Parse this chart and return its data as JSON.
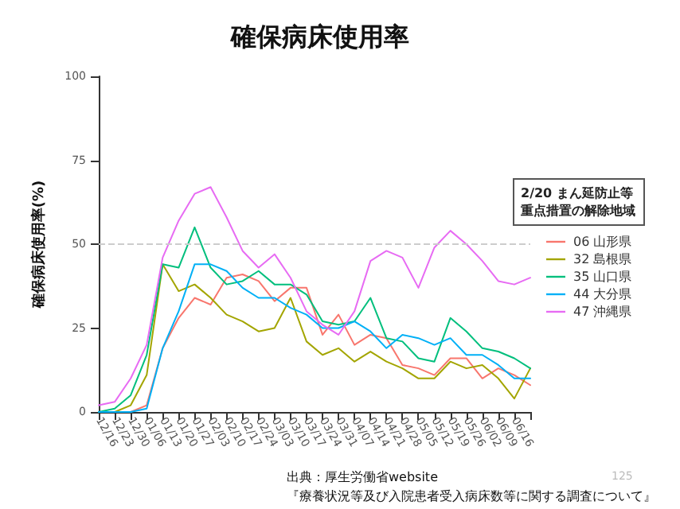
{
  "chart_data": {
    "type": "line",
    "title": "確保病床使用率",
    "ylabel": "確保病床使用率(%)",
    "legend_title": "2/20 まん延防止等重点措置の解除地域",
    "categories": [
      "12/16",
      "12/23",
      "12/30",
      "01/06",
      "01/13",
      "01/20",
      "01/27",
      "02/03",
      "02/10",
      "02/17",
      "02/24",
      "03/03",
      "03/10",
      "03/17",
      "03/24",
      "03/31",
      "04/07",
      "04/14",
      "04/21",
      "04/28",
      "05/05",
      "05/12",
      "05/19",
      "05/26",
      "06/02",
      "06/09",
      "06/16",
      null
    ],
    "series": [
      {
        "name": "06 山形県",
        "color": "#f8766d",
        "values": [
          0,
          0,
          0,
          2,
          19,
          28,
          34,
          32,
          40,
          41,
          39,
          33,
          37,
          37,
          23,
          29,
          20,
          23,
          22,
          14,
          13,
          11,
          16,
          16,
          10,
          13,
          11,
          8
        ]
      },
      {
        "name": "32 島根県",
        "color": "#a3a500",
        "values": [
          0,
          0,
          2,
          11,
          44,
          36,
          38,
          34,
          29,
          27,
          24,
          25,
          34,
          21,
          17,
          19,
          15,
          18,
          15,
          13,
          10,
          10,
          15,
          13,
          14,
          10,
          4,
          13
        ]
      },
      {
        "name": "35 山口県",
        "color": "#00bf7d",
        "values": [
          0,
          1,
          5,
          17,
          44,
          43,
          55,
          43,
          38,
          39,
          42,
          38,
          38,
          35,
          27,
          26,
          27,
          34,
          22,
          21,
          16,
          15,
          28,
          24,
          19,
          18,
          16,
          13
        ]
      },
      {
        "name": "44 大分県",
        "color": "#00b0f6",
        "values": [
          0,
          0,
          0,
          1,
          19,
          30,
          44,
          44,
          42,
          37,
          34,
          34,
          31,
          29,
          25,
          25,
          27,
          24,
          19,
          23,
          22,
          20,
          22,
          17,
          17,
          14,
          10,
          10
        ]
      },
      {
        "name": "47 沖縄県",
        "color": "#e76bf3",
        "values": [
          2,
          3,
          10,
          20,
          46,
          57,
          65,
          67,
          58,
          48,
          43,
          47,
          40,
          30,
          26,
          23,
          30,
          45,
          48,
          46,
          37,
          49,
          54,
          50,
          45,
          39,
          38,
          40
        ]
      }
    ],
    "ylim": [
      0,
      100
    ],
    "yticks": [
      0,
      25,
      50,
      75,
      100
    ],
    "grid": false,
    "legend": "right",
    "marker": "none",
    "line_style": "solid",
    "ref_lines": [
      {
        "axis": "y",
        "value": 50,
        "color": "#cccccc",
        "line_style": "dashed"
      }
    ],
    "annotations": [
      "出典：厚生労働省website",
      "『療養状況等及び入院患者受入病床数等に関する調査について』",
      "125"
    ]
  }
}
